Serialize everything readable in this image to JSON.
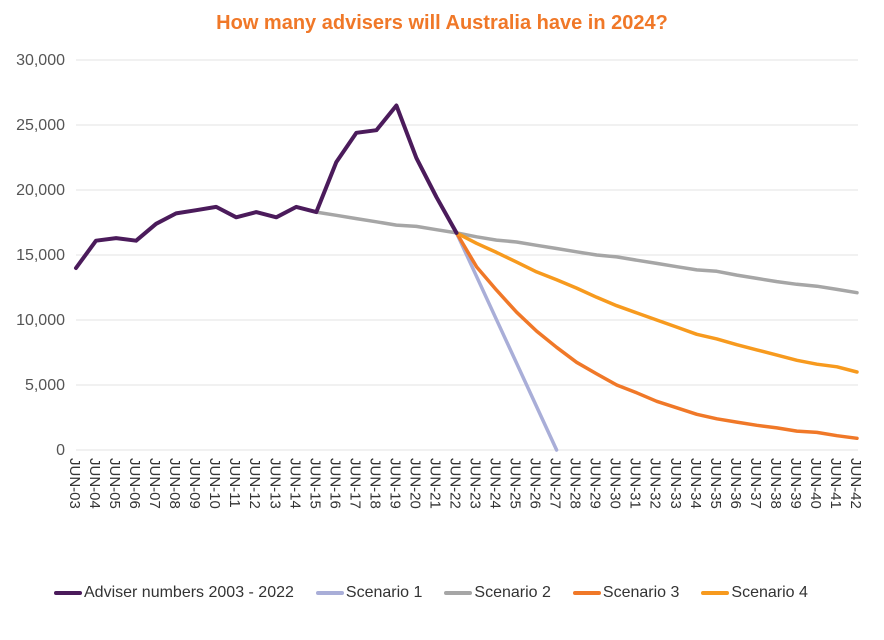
{
  "chart_data": {
    "type": "line",
    "title": "How many advisers will Australia have in 2024?",
    "xlabel": "",
    "ylabel": "",
    "ylim": [
      0,
      30000
    ],
    "yticks": [
      "0",
      "5,000",
      "10,000",
      "15,000",
      "20,000",
      "25,000",
      "30,000"
    ],
    "ytick_values": [
      0,
      5000,
      10000,
      15000,
      20000,
      25000,
      30000
    ],
    "grid": true,
    "legend_position": "bottom",
    "categories": [
      "JUN-03",
      "JUN-04",
      "JUN-05",
      "JUN-06",
      "JUN-07",
      "JUN-08",
      "JUN-09",
      "JUN-10",
      "JUN-11",
      "JUN-12",
      "JUN-13",
      "JUN-14",
      "JUN-15",
      "JUN-16",
      "JUN-17",
      "JUN-18",
      "JUN-19",
      "JUN-20",
      "JUN-21",
      "JUN-22",
      "JUN-23",
      "JUN-24",
      "JUN-25",
      "JUN-26",
      "JUN-27",
      "JUN-28",
      "JUN-29",
      "JUN-30",
      "JUN-31",
      "JUN-32",
      "JUN-33",
      "JUN-34",
      "JUN-35",
      "JUN-36",
      "JUN-37",
      "JUN-38",
      "JUN-39",
      "JUN-40",
      "JUN-41",
      "JUN-42"
    ],
    "series": [
      {
        "name": "Adviser numbers 2003 - 2022",
        "color": "#4B1B5B",
        "values": [
          14000,
          16100,
          16300,
          16100,
          17400,
          18200,
          18450,
          18700,
          17900,
          18300,
          17900,
          18700,
          18300,
          22150,
          24400,
          24600,
          26500,
          22450,
          19450,
          16700,
          null,
          null,
          null,
          null,
          null,
          null,
          null,
          null,
          null,
          null,
          null,
          null,
          null,
          null,
          null,
          null,
          null,
          null,
          null,
          null
        ]
      },
      {
        "name": "Scenario 1",
        "color": "#A9AED8",
        "values": [
          null,
          null,
          null,
          null,
          null,
          null,
          null,
          null,
          null,
          null,
          null,
          null,
          null,
          null,
          null,
          null,
          null,
          null,
          null,
          16700,
          13360,
          10020,
          6680,
          3340,
          0,
          null,
          null,
          null,
          null,
          null,
          null,
          null,
          null,
          null,
          null,
          null,
          null,
          null,
          null,
          null
        ]
      },
      {
        "name": "Scenario 2",
        "color": "#A6A6A6",
        "values": [
          null,
          null,
          null,
          null,
          null,
          null,
          null,
          null,
          null,
          null,
          null,
          null,
          18300,
          18050,
          17800,
          17550,
          17300,
          17200,
          16950,
          16700,
          16400,
          16150,
          16000,
          15750,
          15500,
          15250,
          15000,
          14850,
          14600,
          14350,
          14100,
          13850,
          13750,
          13450,
          13200,
          12950,
          12750,
          12600,
          12350,
          12100
        ]
      },
      {
        "name": "Scenario 3",
        "color": "#F07828",
        "values": [
          null,
          null,
          null,
          null,
          null,
          null,
          null,
          null,
          null,
          null,
          null,
          null,
          null,
          null,
          null,
          null,
          null,
          null,
          null,
          16700,
          14100,
          12300,
          10600,
          9150,
          7900,
          6750,
          5850,
          5000,
          4400,
          3750,
          3250,
          2750,
          2400,
          2150,
          1900,
          1700,
          1450,
          1350,
          1100,
          900
        ]
      },
      {
        "name": "Scenario 4",
        "color": "#F79A1E",
        "values": [
          null,
          null,
          null,
          null,
          null,
          null,
          null,
          null,
          null,
          null,
          null,
          null,
          null,
          null,
          null,
          null,
          null,
          null,
          null,
          16700,
          15900,
          15200,
          14450,
          13700,
          13100,
          12450,
          11750,
          11100,
          10550,
          10000,
          9450,
          8900,
          8550,
          8100,
          7700,
          7300,
          6900,
          6600,
          6400,
          6000
        ]
      }
    ]
  }
}
